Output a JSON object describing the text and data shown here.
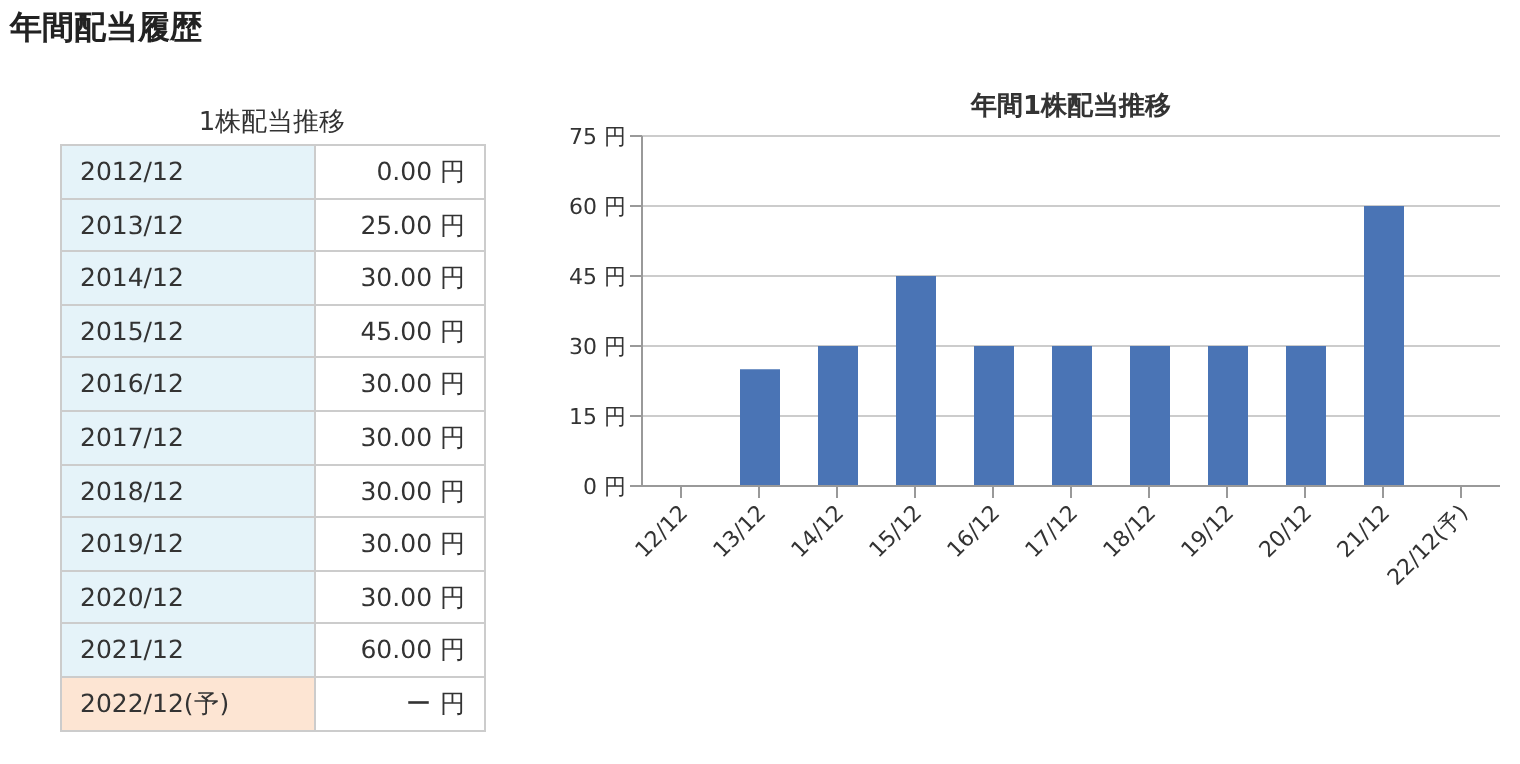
{
  "chart_data": [
    {
      "type": "other",
      "title": "年間配当履歴",
      "subtitle": "1株配当推移",
      "categories": [
        "2012/12",
        "2013/12",
        "2014/12",
        "2015/12",
        "2016/12",
        "2017/12",
        "2018/12",
        "2019/12",
        "2020/12",
        "2021/12",
        "2022/12(予)"
      ],
      "value_labels": [
        "0.00 円",
        "25.00 円",
        "30.00 円",
        "45.00 円",
        "30.00 円",
        "30.00 円",
        "30.00 円",
        "30.00 円",
        "30.00 円",
        "60.00 円",
        "ー 円"
      ],
      "colors": [
        "#e5f3f9",
        "#e5f3f9",
        "#e5f3f9",
        "#e5f3f9",
        "#e5f3f9",
        "#e5f3f9",
        "#e5f3f9",
        "#e5f3f9",
        "#e5f3f9",
        "#e5f3f9",
        "#fde5d3"
      ]
    },
    {
      "type": "bar",
      "title": "年間1株配当推移",
      "categories": [
        "12/12",
        "13/12",
        "14/12",
        "15/12",
        "16/12",
        "17/12",
        "18/12",
        "19/12",
        "20/12",
        "21/12",
        "22/12(予)"
      ],
      "values": [
        0,
        25,
        30,
        45,
        30,
        30,
        30,
        30,
        30,
        60,
        null
      ],
      "color": "#4a74b5",
      "ylim": [
        0,
        75
      ],
      "yticks": [
        {
          "value": 0,
          "label": "0 円"
        },
        {
          "value": 15,
          "label": "15 円"
        },
        {
          "value": 30,
          "label": "30 円"
        },
        {
          "value": 45,
          "label": "45 円"
        },
        {
          "value": 60,
          "label": "60 円"
        },
        {
          "value": 75,
          "label": "75 円"
        }
      ],
      "grid": "y"
    }
  ]
}
